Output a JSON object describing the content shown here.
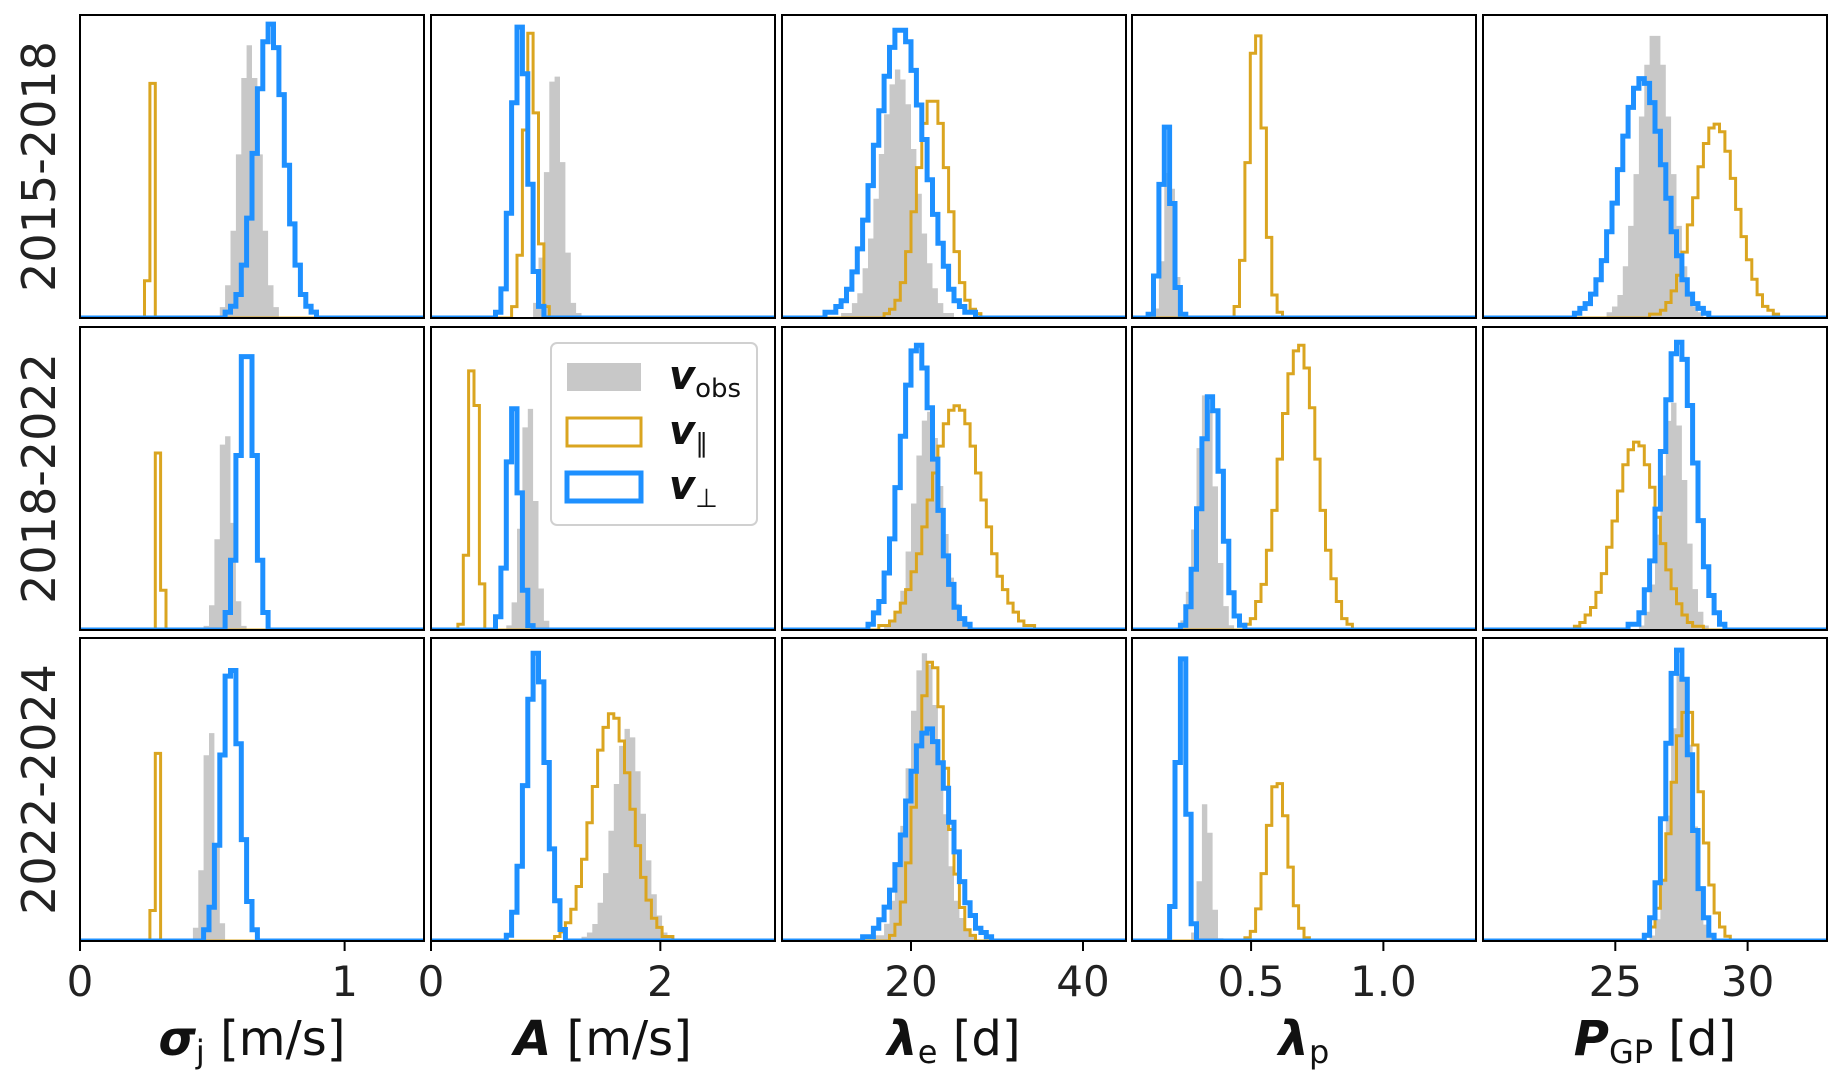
{
  "chart_data": {
    "type": "histogram-grid",
    "rows": [
      "2015-2018",
      "2018-2022",
      "2022-2024"
    ],
    "legend": [
      {
        "name": "v_obs",
        "base": "v",
        "sub": "obs",
        "color": "#c8c8c8",
        "style": "filled"
      },
      {
        "name": "v_par",
        "base": "v",
        "sub": "∥",
        "color": "#daa520",
        "style": "step"
      },
      {
        "name": "v_perp",
        "base": "v",
        "sub": "⊥",
        "color": "#1e90ff",
        "style": "step"
      }
    ],
    "columns": [
      {
        "param": "sigma_j",
        "xlabel": {
          "sym": "σ",
          "sub": "j",
          "unit": " [m/s]"
        },
        "xlim": [
          0,
          1.3
        ],
        "ticks": [
          0,
          1
        ],
        "tick_labels": [
          "0",
          "1"
        ],
        "series": [
          [
            {
              "mu": 0.64,
              "sd": 0.04,
              "h": 0.9
            },
            {
              "mu": 0.27,
              "sd": 0.008,
              "h": 0.88
            },
            {
              "mu": 0.72,
              "sd": 0.055,
              "h": 0.97
            }
          ],
          [
            {
              "mu": 0.55,
              "sd": 0.025,
              "h": 0.68
            },
            {
              "mu": 0.3,
              "sd": 0.008,
              "h": 0.73
            },
            {
              "mu": 0.63,
              "sd": 0.03,
              "h": 0.96
            }
          ],
          [
            {
              "mu": 0.49,
              "sd": 0.022,
              "h": 0.73
            },
            {
              "mu": 0.29,
              "sd": 0.008,
              "h": 0.72
            },
            {
              "mu": 0.57,
              "sd": 0.035,
              "h": 0.93
            }
          ]
        ]
      },
      {
        "param": "A",
        "xlabel": {
          "sym": "A",
          "sub": "",
          "unit": " [m/s]"
        },
        "xlim": [
          0,
          3
        ],
        "ticks": [
          0,
          2
        ],
        "tick_labels": [
          "0",
          "2"
        ],
        "series": [
          [
            {
              "mu": 1.08,
              "sd": 0.07,
              "h": 0.83
            },
            {
              "mu": 0.87,
              "sd": 0.055,
              "h": 0.94
            },
            {
              "mu": 0.78,
              "sd": 0.07,
              "h": 0.96
            }
          ],
          [
            {
              "mu": 0.85,
              "sd": 0.06,
              "h": 0.76
            },
            {
              "mu": 0.37,
              "sd": 0.04,
              "h": 0.95
            },
            {
              "mu": 0.72,
              "sd": 0.055,
              "h": 0.73
            }
          ],
          [
            {
              "mu": 1.72,
              "sd": 0.13,
              "h": 0.7
            },
            {
              "mu": 1.58,
              "sd": 0.17,
              "h": 0.75
            },
            {
              "mu": 0.92,
              "sd": 0.09,
              "h": 0.95
            }
          ]
        ]
      },
      {
        "param": "lambda_e",
        "xlabel": {
          "sym": "λ",
          "sub": "e",
          "unit": " [d]"
        },
        "xlim": [
          5,
          45
        ],
        "ticks": [
          20,
          40
        ],
        "tick_labels": [
          "20",
          "40"
        ],
        "series": [
          [
            {
              "mu": 18.5,
              "sd": 2.1,
              "h": 0.82
            },
            {
              "mu": 22.5,
              "sd": 1.8,
              "h": 0.73
            },
            {
              "mu": 18.8,
              "sd": 2.8,
              "h": 0.95
            }
          ],
          [
            {
              "mu": 22.0,
              "sd": 1.6,
              "h": 0.72
            },
            {
              "mu": 25.3,
              "sd": 3.0,
              "h": 0.74
            },
            {
              "mu": 20.8,
              "sd": 2.0,
              "h": 0.94
            }
          ],
          [
            {
              "mu": 21.6,
              "sd": 1.9,
              "h": 0.95
            },
            {
              "mu": 22.4,
              "sd": 1.7,
              "h": 0.92
            },
            {
              "mu": 22.0,
              "sd": 2.5,
              "h": 0.7
            }
          ]
        ]
      },
      {
        "param": "lambda_p",
        "xlabel": {
          "sym": "λ",
          "sub": "p",
          "unit": ""
        },
        "xlim": [
          0.05,
          1.35
        ],
        "ticks": [
          0.5,
          1.0
        ],
        "tick_labels": [
          "0.5",
          "1.0"
        ],
        "series": [
          [
            {
              "mu": 0.19,
              "sd": 0.02,
              "h": 0.52
            },
            {
              "mu": 0.52,
              "sd": 0.03,
              "h": 0.95
            },
            {
              "mu": 0.18,
              "sd": 0.022,
              "h": 0.63
            }
          ],
          [
            {
              "mu": 0.33,
              "sd": 0.035,
              "h": 0.79
            },
            {
              "mu": 0.68,
              "sd": 0.07,
              "h": 0.94
            },
            {
              "mu": 0.35,
              "sd": 0.04,
              "h": 0.77
            }
          ],
          [
            {
              "mu": 0.33,
              "sd": 0.02,
              "h": 0.47
            },
            {
              "mu": 0.6,
              "sd": 0.04,
              "h": 0.53
            },
            {
              "mu": 0.24,
              "sd": 0.018,
              "h": 0.95
            }
          ]
        ]
      },
      {
        "param": "P_GP",
        "xlabel": {
          "sym": "P",
          "sub": "GP",
          "unit": " [d]"
        },
        "xlim": [
          20,
          33
        ],
        "ticks": [
          25,
          30
        ],
        "tick_labels": [
          "25",
          "30"
        ],
        "series": [
          [
            {
              "mu": 26.5,
              "sd": 0.6,
              "h": 0.95
            },
            {
              "mu": 28.8,
              "sd": 0.8,
              "h": 0.64
            },
            {
              "mu": 26.0,
              "sd": 0.85,
              "h": 0.79
            }
          ],
          [
            {
              "mu": 27.2,
              "sd": 0.45,
              "h": 0.75
            },
            {
              "mu": 25.8,
              "sd": 0.8,
              "h": 0.62
            },
            {
              "mu": 27.4,
              "sd": 0.6,
              "h": 0.95
            }
          ],
          [
            {
              "mu": 27.5,
              "sd": 0.4,
              "h": 0.9
            },
            {
              "mu": 27.7,
              "sd": 0.55,
              "h": 0.77
            },
            {
              "mu": 27.4,
              "sd": 0.45,
              "h": 0.96
            }
          ]
        ]
      }
    ]
  }
}
